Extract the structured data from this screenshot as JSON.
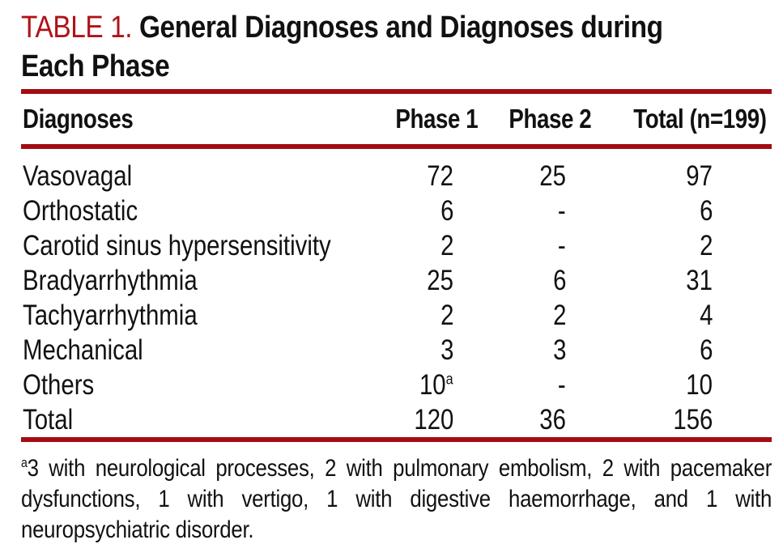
{
  "title": {
    "label": "TABLE 1.",
    "line1_rest": "General Diagnoses and Diagnoses during",
    "line2": "Each Phase"
  },
  "table": {
    "columns": [
      "Diagnoses",
      "Phase 1",
      "Phase 2",
      "Total (n=199)"
    ],
    "rows": [
      {
        "name": "Vasovagal",
        "phase1": "72",
        "phase2": "25",
        "total": "97"
      },
      {
        "name": "Orthostatic",
        "phase1": "6",
        "phase2": "-",
        "total": "6"
      },
      {
        "name": "Carotid sinus hypersensitivity",
        "phase1": "2",
        "phase2": "-",
        "total": "2"
      },
      {
        "name": "Bradyarrhythmia",
        "phase1": "25",
        "phase2": "6",
        "total": "31"
      },
      {
        "name": "Tachyarrhythmia",
        "phase1": "2",
        "phase2": "2",
        "total": "4"
      },
      {
        "name": "Mechanical",
        "phase1": "3",
        "phase2": "3",
        "total": "6"
      },
      {
        "name": "Others",
        "phase1": "10",
        "phase1_sup": "a",
        "phase2": "-",
        "total": "10"
      },
      {
        "name": "Total",
        "phase1": "120",
        "phase2": "36",
        "total": "156"
      }
    ]
  },
  "footnote": {
    "marker": "a",
    "text": "3 with neurological processes, 2 with pulmonary embolism, 2 with pacemaker dysfunctions, 1 with vertigo, 1 with digestive haemorrhage, and 1 with neuropsychiatric disorder."
  },
  "colors": {
    "accent_red": "#b01218",
    "rule_red": "#a30d12",
    "text": "#111111"
  }
}
